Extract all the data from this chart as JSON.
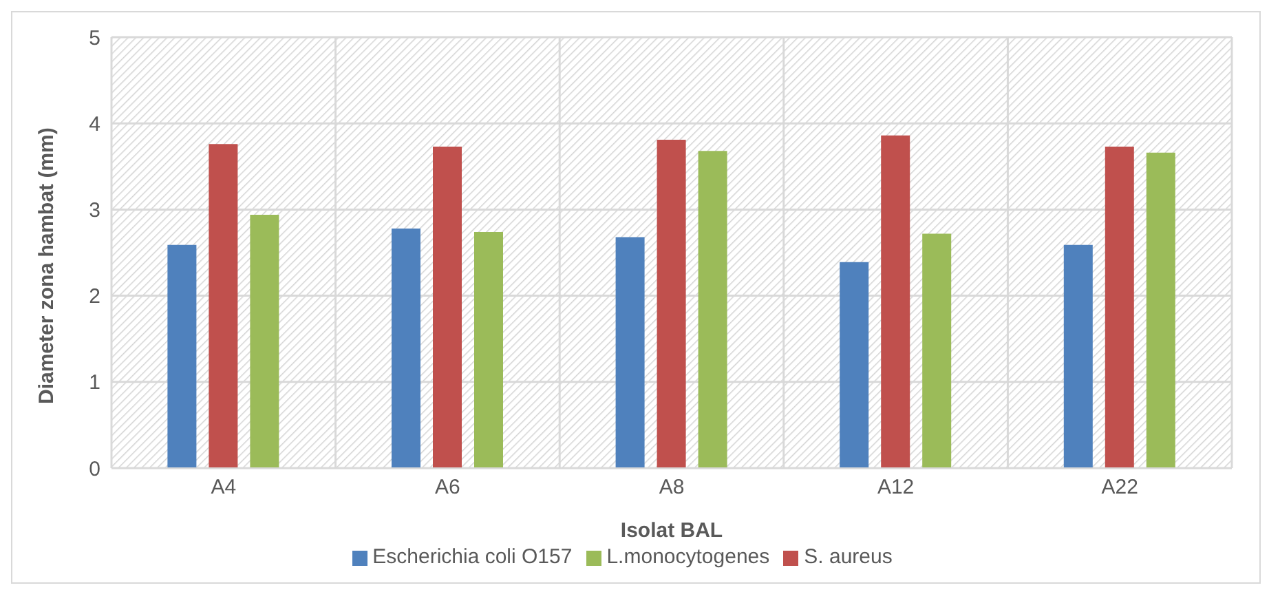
{
  "chart_data": {
    "type": "bar",
    "xlabel": "Isolat BAL",
    "ylabel": "Diameter zona hambat (mm)",
    "categories": [
      "A4",
      "A6",
      "A8",
      "A12",
      "A22"
    ],
    "series": [
      {
        "name": "Escherichia coli O157",
        "color": "#4f81bd",
        "values": [
          2.59,
          2.78,
          2.68,
          2.39,
          2.59
        ]
      },
      {
        "name": "S. aureus",
        "color": "#c0504d",
        "values": [
          3.76,
          3.73,
          3.81,
          3.86,
          3.73
        ]
      },
      {
        "name": "L.monocytogenes",
        "color": "#9bbb59",
        "values": [
          2.94,
          2.74,
          3.68,
          2.72,
          3.66
        ]
      }
    ],
    "ylim": [
      0,
      5
    ],
    "yticks": [
      0,
      1,
      2,
      3,
      4,
      5
    ],
    "grid": true,
    "legend": "bottom"
  }
}
